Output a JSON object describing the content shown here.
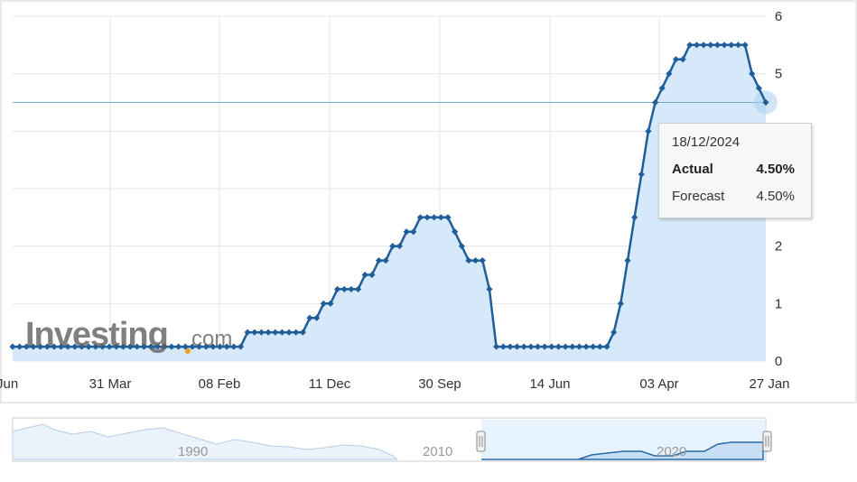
{
  "chart_data": {
    "type": "line",
    "series": [
      {
        "values": [
          0.25,
          0.25,
          0.25,
          0.25,
          0.25,
          0.25,
          0.25,
          0.25,
          0.25,
          0.25,
          0.25,
          0.25,
          0.25,
          0.25,
          0.25,
          0.25,
          0.25,
          0.25,
          0.25,
          0.25,
          0.25,
          0.25,
          0.25,
          0.25,
          0.25,
          0.25,
          0.25,
          0.25,
          0.25,
          0.25,
          0.25,
          0.25,
          0.25,
          0.25,
          0.5,
          0.5,
          0.5,
          0.5,
          0.5,
          0.5,
          0.5,
          0.5,
          0.5,
          0.75,
          0.75,
          1.0,
          1.0,
          1.25,
          1.25,
          1.25,
          1.25,
          1.5,
          1.5,
          1.75,
          1.75,
          2.0,
          2.0,
          2.25,
          2.25,
          2.5,
          2.5,
          2.5,
          2.5,
          2.5,
          2.25,
          2.0,
          1.75,
          1.75,
          1.75,
          1.25,
          0.25,
          0.25,
          0.25,
          0.25,
          0.25,
          0.25,
          0.25,
          0.25,
          0.25,
          0.25,
          0.25,
          0.25,
          0.25,
          0.25,
          0.25,
          0.25,
          0.25,
          0.5,
          1.0,
          1.75,
          2.5,
          3.25,
          4.0,
          4.5,
          4.75,
          5.0,
          5.25,
          5.25,
          5.5,
          5.5,
          5.5,
          5.5,
          5.5,
          5.5,
          5.5,
          5.5,
          5.5,
          5.0,
          4.75,
          4.5
        ]
      }
    ],
    "x_tick_labels": [
      "Jun",
      "31 Mar",
      "08 Feb",
      "11 Dec",
      "30 Sep",
      "14 Jun",
      "03 Apr",
      "27 Jan"
    ],
    "y_ticks": [
      0,
      1,
      2,
      5,
      6
    ],
    "ylim": [
      0,
      6
    ],
    "reference_line": 4.5,
    "grid": true,
    "tooltip": {
      "date": "18/12/2024",
      "actual_label": "Actual",
      "actual_value": "4.50%",
      "forecast_label": "Forecast",
      "forecast_value": "4.50%"
    },
    "navigator": {
      "year_labels": [
        "1990",
        "2010",
        "2020"
      ]
    },
    "watermark": "Investing.com"
  },
  "colors": {
    "line": "#1f5e99",
    "fill": "#d6e9fb",
    "grid": "#e6e6e6",
    "reference": "#6fa9cf",
    "axis_text": "#333333"
  }
}
